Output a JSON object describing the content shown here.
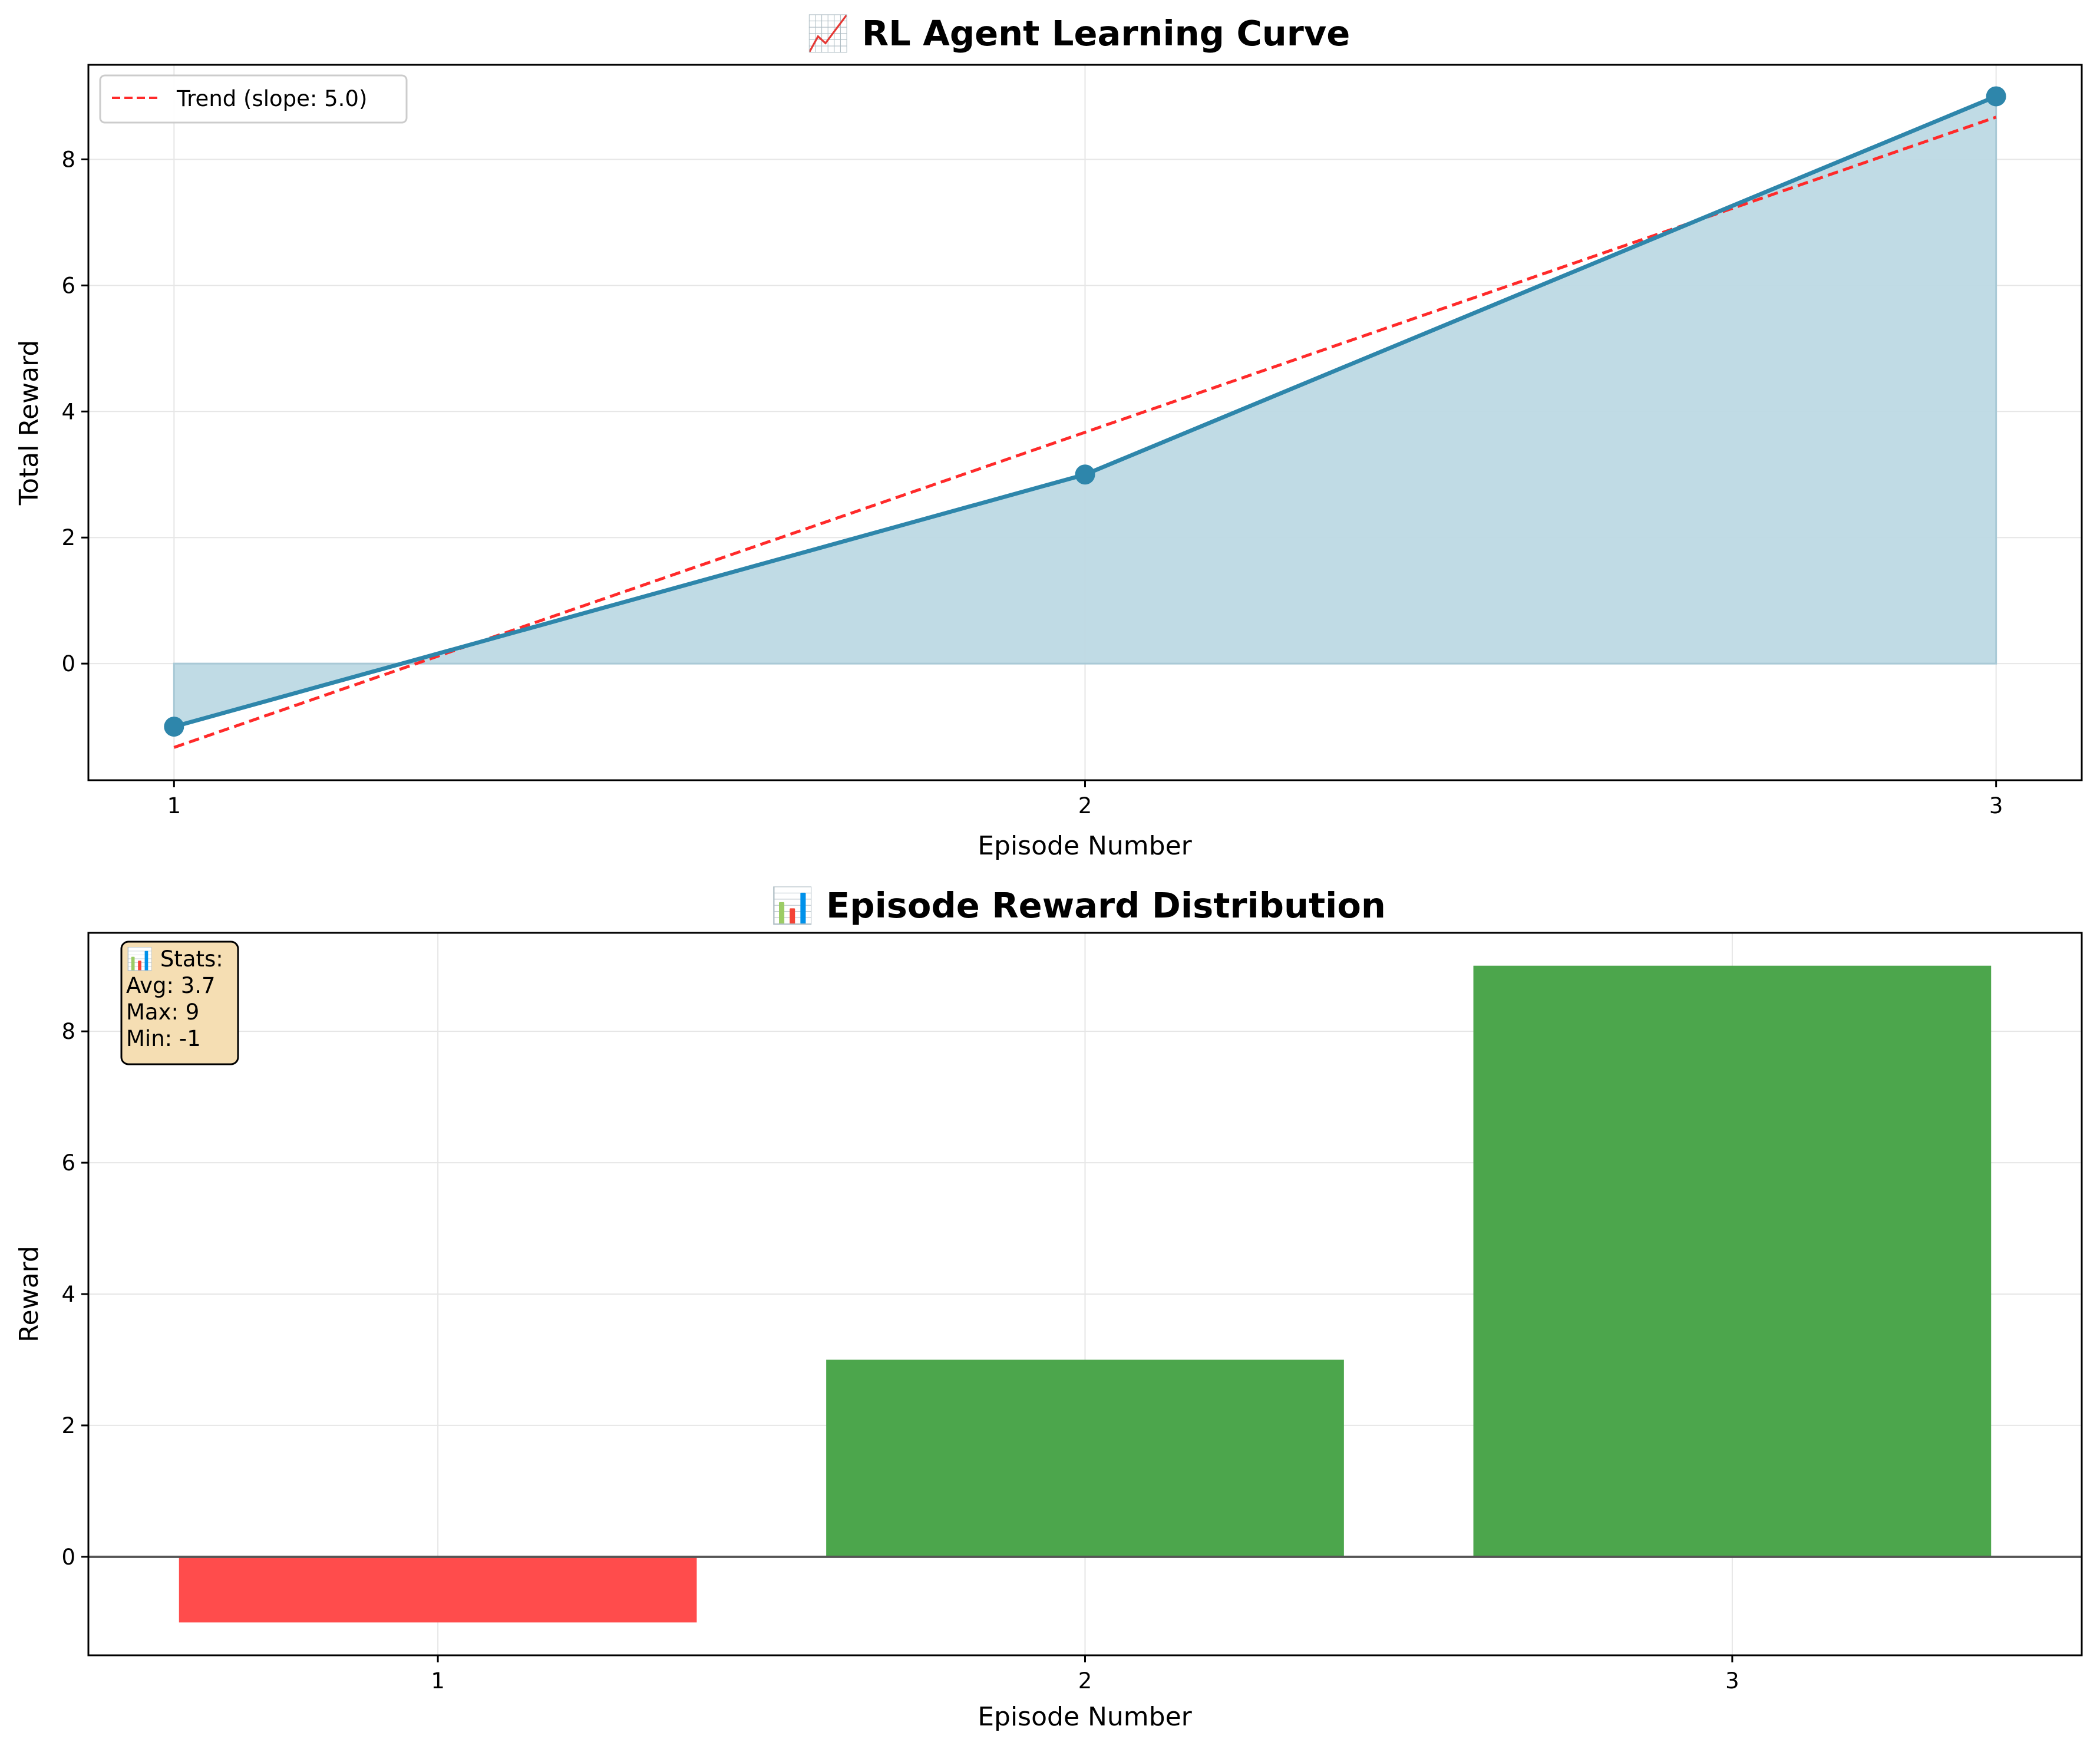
{
  "chart_data": [
    {
      "type": "line",
      "title": "📈 RL Agent Learning Curve",
      "xlabel": "Episode Number",
      "ylabel": "Total Reward",
      "x": [
        1,
        2,
        3
      ],
      "x_tick_labels": [
        "1",
        "2",
        "3"
      ],
      "y_tick_labels": [
        "0",
        "2",
        "4",
        "6",
        "8"
      ],
      "xlim": [
        0.906,
        3.094
      ],
      "ylim": [
        -1.85,
        9.5
      ],
      "series": [
        {
          "values": [
            -1,
            3,
            9
          ],
          "color": "#2e86ab",
          "fill": "#bdd9e4",
          "marker": "circle"
        }
      ],
      "trend": {
        "label": "Trend (slope: 5.0)",
        "slope": 5.0,
        "values": [
          -1.33,
          3.67,
          8.67
        ],
        "color": "#ff2a2a",
        "style": "dashed"
      },
      "legend_position": "top-left",
      "grid": true
    },
    {
      "type": "bar",
      "title": "📊 Episode Reward Distribution",
      "xlabel": "Episode Number",
      "ylabel": "Reward",
      "categories": [
        "1",
        "2",
        "3"
      ],
      "values": [
        -1,
        3,
        9
      ],
      "y_tick_labels": [
        "0",
        "2",
        "4",
        "6",
        "8"
      ],
      "ylim": [
        -1.5,
        9.5
      ],
      "colors": {
        "negative": "#ff4c4c",
        "positive": "#4ca64c"
      },
      "stats_box": {
        "lines": [
          "📊 Stats:",
          "Avg: 3.7",
          "Max: 9",
          "Min: -1"
        ],
        "position": "top-left",
        "fill": "#f5deb3"
      },
      "zero_line": true,
      "grid": true
    }
  ]
}
